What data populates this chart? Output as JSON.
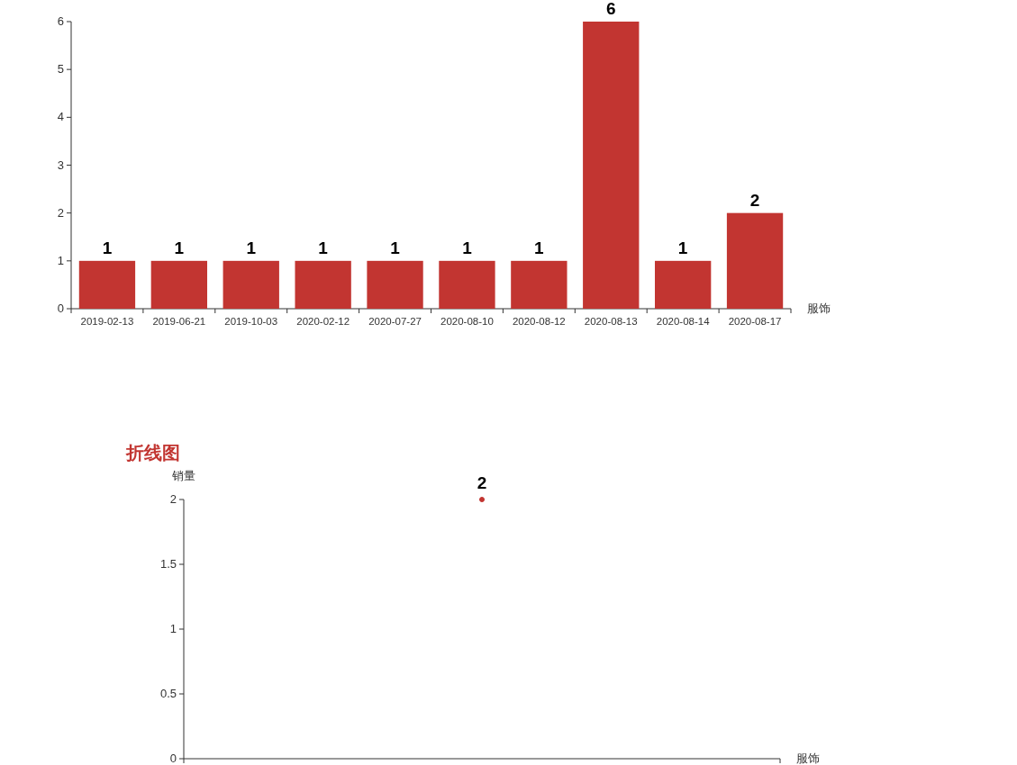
{
  "chart_data": [
    {
      "type": "bar",
      "xlabel": "服饰",
      "categories": [
        "2019-02-13",
        "2019-06-21",
        "2019-10-03",
        "2020-02-12",
        "2020-07-27",
        "2020-08-10",
        "2020-08-12",
        "2020-08-13",
        "2020-08-14",
        "2020-08-17"
      ],
      "values": [
        1,
        1,
        1,
        1,
        1,
        1,
        1,
        6,
        1,
        2
      ],
      "color": "#c23531",
      "ylim": [
        0,
        6
      ],
      "yticks": [
        0,
        1,
        2,
        3,
        4,
        5,
        6
      ],
      "data_labels": true
    },
    {
      "type": "line",
      "title": "折线图",
      "ylabel": "销量",
      "xlabel": "服饰",
      "categories": [
        null
      ],
      "values": [
        2
      ],
      "color": "#c23531",
      "ylim": [
        0,
        2
      ],
      "yticks": [
        0,
        0.5,
        1,
        1.5,
        2
      ],
      "data_labels": true,
      "marker": "circle"
    }
  ]
}
